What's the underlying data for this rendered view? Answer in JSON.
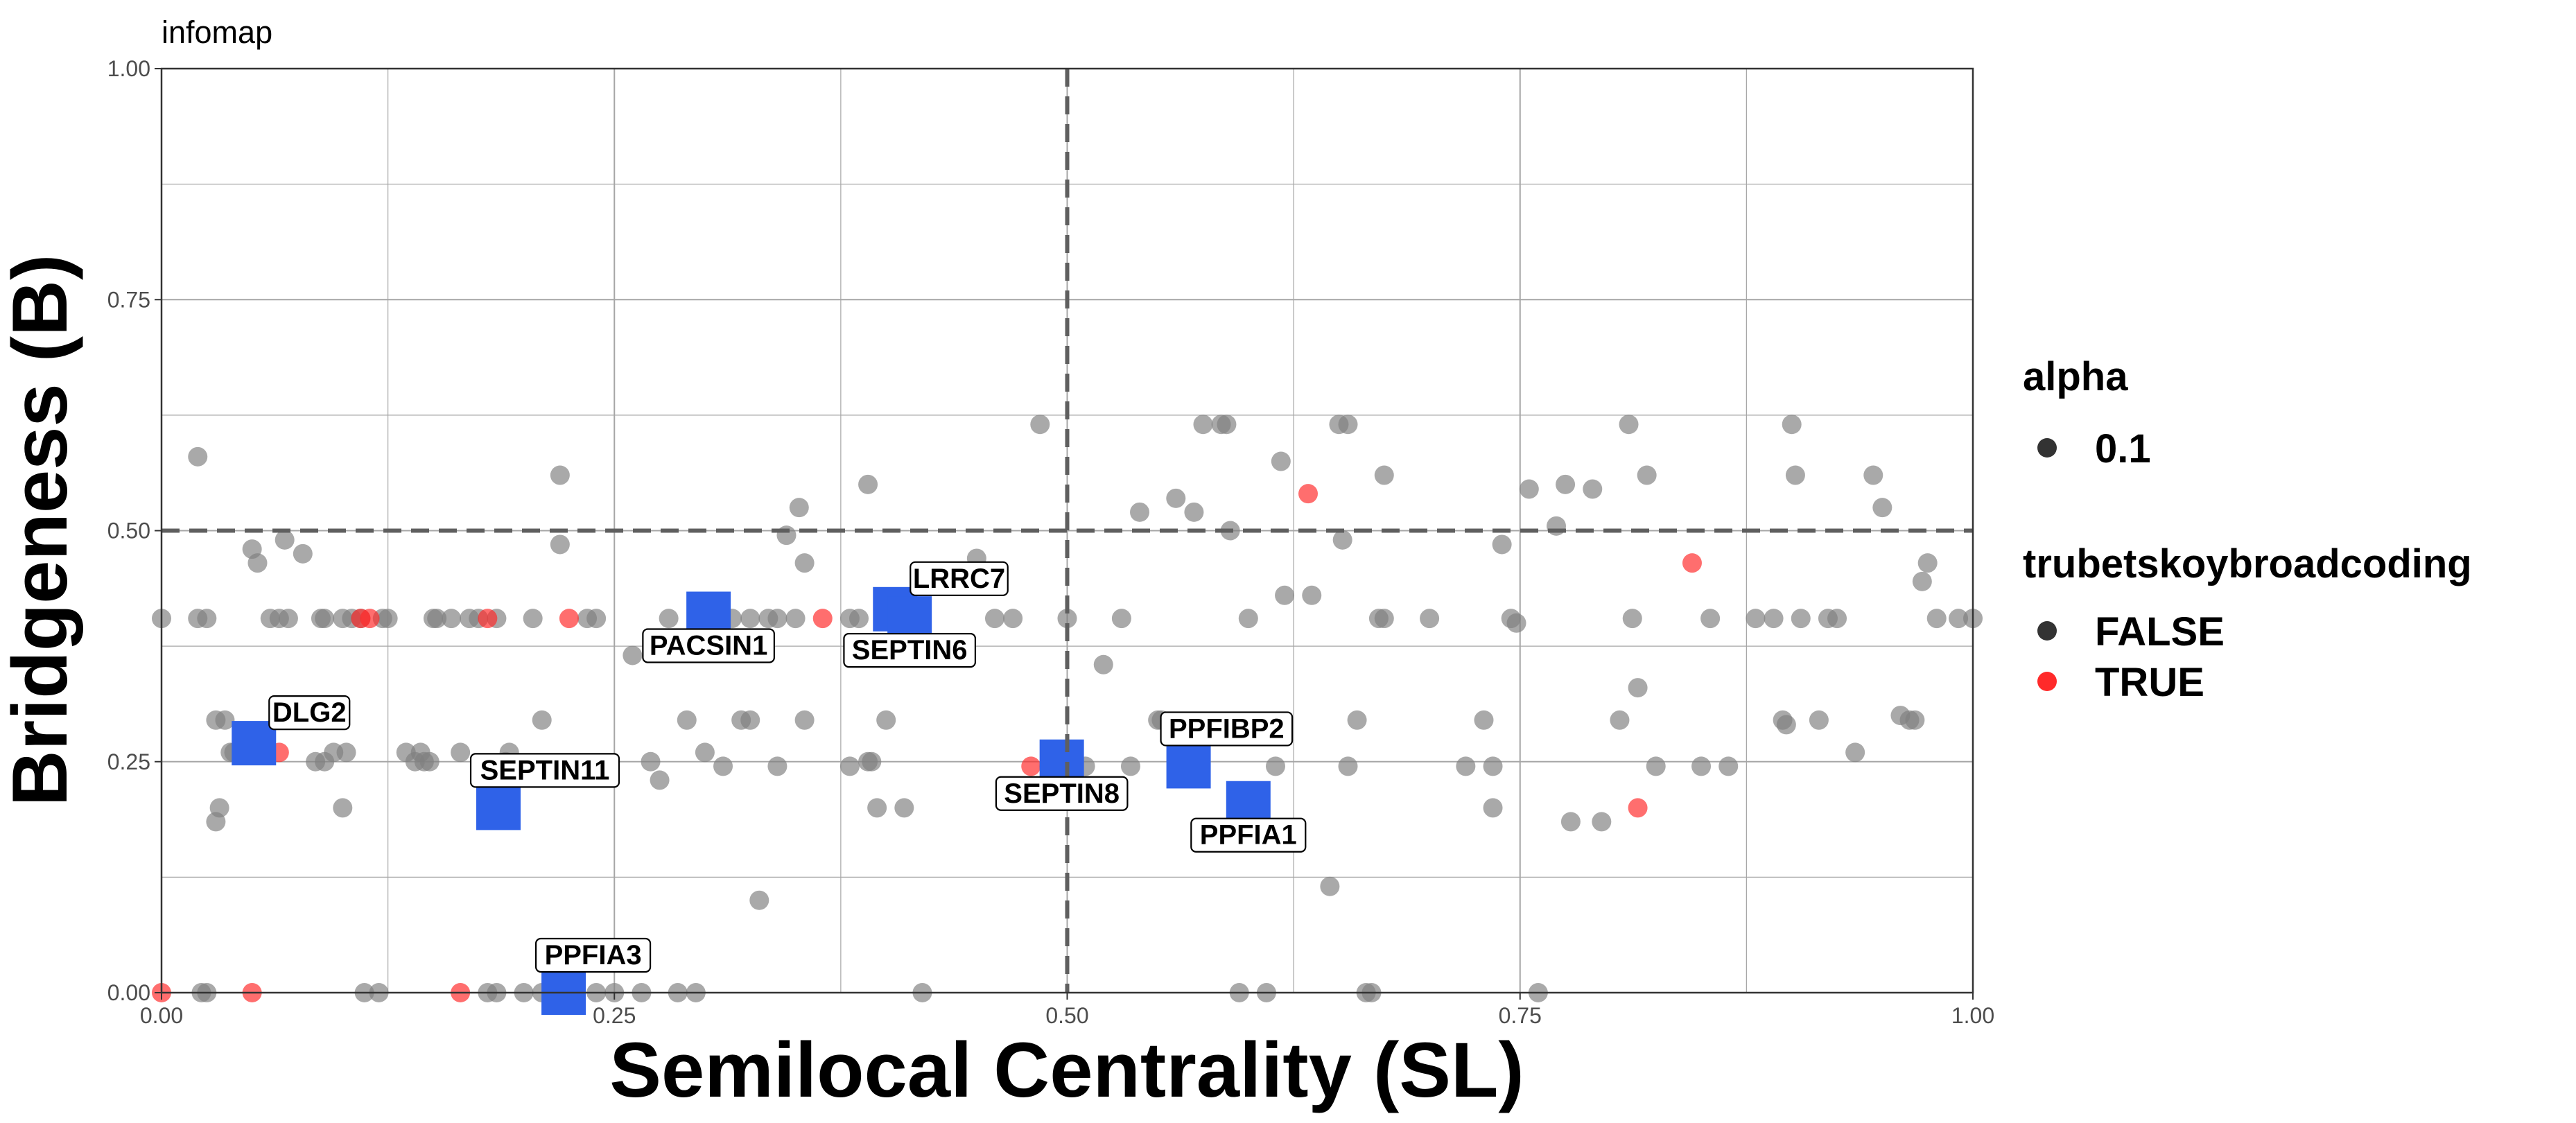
{
  "page_title": "infomap",
  "chart_data": {
    "type": "scatter",
    "title": "infomap",
    "xlabel": "Semilocal Centrality (SL)",
    "ylabel": "Bridgeness (B)",
    "xlim": [
      0,
      1
    ],
    "ylim": [
      0,
      1
    ],
    "xticks": [
      "0.00",
      "0.25",
      "0.50",
      "0.75",
      "1.00"
    ],
    "yticks": [
      "0.00",
      "0.25",
      "0.50",
      "0.75",
      "1.00"
    ],
    "grid": true,
    "reference_lines": {
      "vertical_x": 0.5,
      "horizontal_y": 0.5,
      "style": "dashed"
    },
    "legend": {
      "placement": "right",
      "alpha": {
        "title": "alpha",
        "entries": [
          "0.1"
        ]
      },
      "color": {
        "title": "trubetskoybroadcoding",
        "entries": [
          "FALSE",
          "TRUE"
        ]
      }
    },
    "colors": {
      "FALSE": "#808080",
      "TRUE": "#ff2a2a",
      "highlight": "#2f62e8"
    },
    "false_points": [
      [
        0.0,
        0.405
      ],
      [
        0.02,
        0.58
      ],
      [
        0.02,
        0.405
      ],
      [
        0.025,
        0.405
      ],
      [
        0.022,
        0.0
      ],
      [
        0.025,
        0.0
      ],
      [
        0.03,
        0.295
      ],
      [
        0.03,
        0.185
      ],
      [
        0.032,
        0.2
      ],
      [
        0.035,
        0.295
      ],
      [
        0.038,
        0.26
      ],
      [
        0.04,
        0.26
      ],
      [
        0.05,
        0.26
      ],
      [
        0.05,
        0.48
      ],
      [
        0.053,
        0.465
      ],
      [
        0.06,
        0.405
      ],
      [
        0.065,
        0.405
      ],
      [
        0.068,
        0.49
      ],
      [
        0.07,
        0.405
      ],
      [
        0.078,
        0.475
      ],
      [
        0.085,
        0.25
      ],
      [
        0.088,
        0.405
      ],
      [
        0.09,
        0.405
      ],
      [
        0.09,
        0.25
      ],
      [
        0.095,
        0.26
      ],
      [
        0.1,
        0.405
      ],
      [
        0.1,
        0.2
      ],
      [
        0.102,
        0.26
      ],
      [
        0.105,
        0.405
      ],
      [
        0.11,
        0.405
      ],
      [
        0.112,
        0.0
      ],
      [
        0.12,
        0.0
      ],
      [
        0.122,
        0.405
      ],
      [
        0.125,
        0.405
      ],
      [
        0.135,
        0.26
      ],
      [
        0.14,
        0.25
      ],
      [
        0.143,
        0.26
      ],
      [
        0.145,
        0.25
      ],
      [
        0.148,
        0.25
      ],
      [
        0.15,
        0.405
      ],
      [
        0.152,
        0.405
      ],
      [
        0.16,
        0.405
      ],
      [
        0.165,
        0.26
      ],
      [
        0.17,
        0.405
      ],
      [
        0.175,
        0.405
      ],
      [
        0.18,
        0.0
      ],
      [
        0.185,
        0.405
      ],
      [
        0.185,
        0.0
      ],
      [
        0.19,
        0.25
      ],
      [
        0.192,
        0.26
      ],
      [
        0.2,
        0.0
      ],
      [
        0.205,
        0.405
      ],
      [
        0.21,
        0.295
      ],
      [
        0.22,
        0.56
      ],
      [
        0.22,
        0.485
      ],
      [
        0.21,
        0.0
      ],
      [
        0.235,
        0.405
      ],
      [
        0.24,
        0.405
      ],
      [
        0.24,
        0.0
      ],
      [
        0.25,
        0.0
      ],
      [
        0.26,
        0.365
      ],
      [
        0.265,
        0.0
      ],
      [
        0.27,
        0.25
      ],
      [
        0.275,
        0.23
      ],
      [
        0.28,
        0.405
      ],
      [
        0.285,
        0.0
      ],
      [
        0.29,
        0.295
      ],
      [
        0.295,
        0.0
      ],
      [
        0.3,
        0.26
      ],
      [
        0.3,
        0.405
      ],
      [
        0.31,
        0.245
      ],
      [
        0.315,
        0.405
      ],
      [
        0.32,
        0.295
      ],
      [
        0.325,
        0.405
      ],
      [
        0.325,
        0.295
      ],
      [
        0.33,
        0.1
      ],
      [
        0.335,
        0.405
      ],
      [
        0.34,
        0.405
      ],
      [
        0.34,
        0.245
      ],
      [
        0.345,
        0.495
      ],
      [
        0.35,
        0.405
      ],
      [
        0.352,
        0.525
      ],
      [
        0.355,
        0.295
      ],
      [
        0.355,
        0.465
      ],
      [
        0.38,
        0.405
      ],
      [
        0.38,
        0.245
      ],
      [
        0.385,
        0.405
      ],
      [
        0.39,
        0.25
      ],
      [
        0.392,
        0.25
      ],
      [
        0.39,
        0.55
      ],
      [
        0.395,
        0.2
      ],
      [
        0.4,
        0.295
      ],
      [
        0.41,
        0.2
      ],
      [
        0.41,
        0.405
      ],
      [
        0.42,
        0.0
      ],
      [
        0.45,
        0.47
      ],
      [
        0.46,
        0.405
      ],
      [
        0.47,
        0.405
      ],
      [
        0.485,
        0.615
      ],
      [
        0.49,
        0.245
      ],
      [
        0.5,
        0.405
      ],
      [
        0.51,
        0.245
      ],
      [
        0.52,
        0.355
      ],
      [
        0.53,
        0.405
      ],
      [
        0.535,
        0.245
      ],
      [
        0.54,
        0.52
      ],
      [
        0.55,
        0.295
      ],
      [
        0.552,
        0.295
      ],
      [
        0.56,
        0.535
      ],
      [
        0.565,
        0.25
      ],
      [
        0.57,
        0.52
      ],
      [
        0.575,
        0.615
      ],
      [
        0.58,
        0.29
      ],
      [
        0.585,
        0.615
      ],
      [
        0.588,
        0.615
      ],
      [
        0.59,
        0.5
      ],
      [
        0.595,
        0.0
      ],
      [
        0.6,
        0.405
      ],
      [
        0.605,
        0.28
      ],
      [
        0.61,
        0.0
      ],
      [
        0.615,
        0.245
      ],
      [
        0.618,
        0.575
      ],
      [
        0.62,
        0.43
      ],
      [
        0.635,
        0.43
      ],
      [
        0.645,
        0.115
      ],
      [
        0.65,
        0.615
      ],
      [
        0.652,
        0.49
      ],
      [
        0.655,
        0.245
      ],
      [
        0.655,
        0.615
      ],
      [
        0.66,
        0.295
      ],
      [
        0.665,
        0.0
      ],
      [
        0.668,
        0.0
      ],
      [
        0.672,
        0.405
      ],
      [
        0.675,
        0.405
      ],
      [
        0.675,
        0.56
      ],
      [
        0.7,
        0.405
      ],
      [
        0.72,
        0.245
      ],
      [
        0.73,
        0.295
      ],
      [
        0.735,
        0.245
      ],
      [
        0.735,
        0.2
      ],
      [
        0.74,
        0.485
      ],
      [
        0.745,
        0.405
      ],
      [
        0.748,
        0.4
      ],
      [
        0.755,
        0.545
      ],
      [
        0.76,
        0.0
      ],
      [
        0.77,
        0.505
      ],
      [
        0.775,
        0.55
      ],
      [
        0.778,
        0.185
      ],
      [
        0.79,
        0.545
      ],
      [
        0.795,
        0.185
      ],
      [
        0.805,
        0.295
      ],
      [
        0.81,
        0.615
      ],
      [
        0.812,
        0.405
      ],
      [
        0.815,
        0.33
      ],
      [
        0.82,
        0.56
      ],
      [
        0.825,
        0.245
      ],
      [
        0.85,
        0.245
      ],
      [
        0.855,
        0.405
      ],
      [
        0.865,
        0.245
      ],
      [
        0.88,
        0.405
      ],
      [
        0.89,
        0.405
      ],
      [
        0.895,
        0.295
      ],
      [
        0.897,
        0.29
      ],
      [
        0.9,
        0.615
      ],
      [
        0.902,
        0.56
      ],
      [
        0.905,
        0.405
      ],
      [
        0.915,
        0.295
      ],
      [
        0.92,
        0.405
      ],
      [
        0.925,
        0.405
      ],
      [
        0.935,
        0.26
      ],
      [
        0.945,
        0.56
      ],
      [
        0.95,
        0.525
      ],
      [
        0.96,
        0.3
      ],
      [
        0.965,
        0.295
      ],
      [
        0.968,
        0.295
      ],
      [
        0.972,
        0.445
      ],
      [
        0.975,
        0.465
      ],
      [
        0.98,
        0.405
      ],
      [
        0.992,
        0.405
      ],
      [
        1.0,
        0.405
      ]
    ],
    "true_points": [
      [
        0.0,
        0.0
      ],
      [
        0.05,
        0.0
      ],
      [
        0.065,
        0.26
      ],
      [
        0.11,
        0.405
      ],
      [
        0.115,
        0.405
      ],
      [
        0.165,
        0.0
      ],
      [
        0.18,
        0.405
      ],
      [
        0.225,
        0.405
      ],
      [
        0.365,
        0.405
      ],
      [
        0.48,
        0.245
      ],
      [
        0.633,
        0.54
      ],
      [
        0.815,
        0.2
      ],
      [
        0.845,
        0.465
      ]
    ],
    "highlighted": [
      {
        "name": "DLG2",
        "x": 0.051,
        "y": 0.27,
        "label_pos": "right"
      },
      {
        "name": "SEPTIN11",
        "x": 0.186,
        "y": 0.2,
        "label_pos": "above"
      },
      {
        "name": "PPFIA3",
        "x": 0.222,
        "y": 0.0,
        "label_pos": "above"
      },
      {
        "name": "PACSIN1",
        "x": 0.302,
        "y": 0.41,
        "label_pos": "below"
      },
      {
        "name": "LRRC7",
        "x": 0.405,
        "y": 0.415,
        "label_pos": "right"
      },
      {
        "name": "SEPTIN6",
        "x": 0.413,
        "y": 0.405,
        "label_pos": "below"
      },
      {
        "name": "SEPTIN8",
        "x": 0.497,
        "y": 0.25,
        "label_pos": "below"
      },
      {
        "name": "PPFIBP2",
        "x": 0.567,
        "y": 0.245,
        "label_pos": "above"
      },
      {
        "name": "PPFIA1",
        "x": 0.6,
        "y": 0.205,
        "label_pos": "below"
      }
    ]
  }
}
